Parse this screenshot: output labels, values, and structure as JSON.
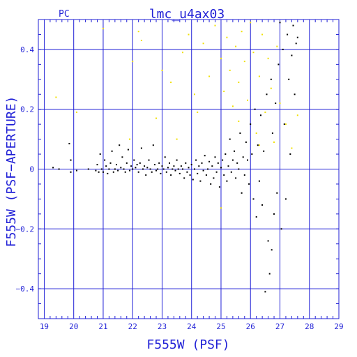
{
  "chart_data": {
    "type": "scatter",
    "title": "lmc_u4ax03",
    "corner_label": "PC",
    "xlabel": "F555W (PSF)",
    "ylabel": "F555W (PSF−APERTURE)",
    "xlim": [
      18.8,
      29.0
    ],
    "ylim": [
      -0.5,
      0.5
    ],
    "x_ticks": [
      "19",
      "20",
      "21",
      "22",
      "23",
      "24",
      "25",
      "26",
      "27",
      "28",
      "29"
    ],
    "y_ticks": [
      "0.4",
      "0.2",
      "0",
      "−0.2",
      "−0.4"
    ],
    "y_tick_values": [
      0.4,
      0.2,
      0,
      -0.2,
      -0.4
    ],
    "x_tick_values": [
      19,
      20,
      21,
      22,
      23,
      24,
      25,
      26,
      27,
      28,
      29
    ],
    "grid": true,
    "colors": {
      "axis": "#1f1fd6",
      "black_points": "#000000",
      "yellow_points": "#f0e000",
      "background": "#ffffff"
    },
    "series": [
      {
        "color": "black",
        "points": [
          [
            19.3,
            0.005
          ],
          [
            19.5,
            0.0
          ],
          [
            19.85,
            0.085
          ],
          [
            19.9,
            0.03
          ],
          [
            19.9,
            -0.01
          ],
          [
            20.1,
            -0.005
          ],
          [
            20.5,
            0.0
          ],
          [
            20.75,
            -0.005
          ],
          [
            20.8,
            0.015
          ],
          [
            20.85,
            -0.01
          ],
          [
            20.9,
            0.05
          ],
          [
            20.95,
            0.0
          ],
          [
            21.0,
            -0.01
          ],
          [
            21.05,
            0.03
          ],
          [
            21.1,
            0.01
          ],
          [
            21.15,
            -0.015
          ],
          [
            21.2,
            0.0
          ],
          [
            21.25,
            0.02
          ],
          [
            21.3,
            0.06
          ],
          [
            21.35,
            -0.01
          ],
          [
            21.4,
            0.0
          ],
          [
            21.45,
            0.015
          ],
          [
            21.5,
            -0.005
          ],
          [
            21.55,
            0.08
          ],
          [
            21.6,
            0.005
          ],
          [
            21.65,
            0.04
          ],
          [
            21.7,
            0.0
          ],
          [
            21.75,
            -0.01
          ],
          [
            21.8,
            0.02
          ],
          [
            21.85,
            0.065
          ],
          [
            21.9,
            -0.005
          ],
          [
            21.95,
            0.01
          ],
          [
            22.0,
            0.0
          ],
          [
            22.05,
            0.03
          ],
          [
            22.1,
            0.005
          ],
          [
            22.15,
            0.015
          ],
          [
            22.2,
            -0.01
          ],
          [
            22.25,
            0.02
          ],
          [
            22.3,
            0.07
          ],
          [
            22.35,
            0.0
          ],
          [
            22.4,
            0.01
          ],
          [
            22.45,
            -0.02
          ],
          [
            22.5,
            0.005
          ],
          [
            22.55,
            0.03
          ],
          [
            22.6,
            0.0
          ],
          [
            22.65,
            -0.01
          ],
          [
            22.7,
            0.08
          ],
          [
            22.75,
            0.015
          ],
          [
            22.8,
            -0.005
          ],
          [
            22.85,
            0.0
          ],
          [
            22.9,
            0.02
          ],
          [
            22.95,
            -0.015
          ],
          [
            23.0,
            0.01
          ],
          [
            23.05,
            0.0
          ],
          [
            23.1,
            0.04
          ],
          [
            23.15,
            -0.01
          ],
          [
            23.2,
            0.005
          ],
          [
            23.25,
            0.02
          ],
          [
            23.3,
            -0.02
          ],
          [
            23.35,
            0.0
          ],
          [
            23.4,
            0.01
          ],
          [
            23.45,
            -0.005
          ],
          [
            23.5,
            0.03
          ],
          [
            23.55,
            0.0
          ],
          [
            23.6,
            -0.015
          ],
          [
            23.65,
            0.01
          ],
          [
            23.7,
            0.0
          ],
          [
            23.75,
            -0.03
          ],
          [
            23.8,
            0.02
          ],
          [
            23.85,
            -0.01
          ],
          [
            23.9,
            0.005
          ],
          [
            23.95,
            -0.02
          ],
          [
            24.0,
            0.015
          ],
          [
            24.05,
            -0.035
          ],
          [
            24.1,
            0.0
          ],
          [
            24.15,
            0.03
          ],
          [
            24.2,
            -0.015
          ],
          [
            24.25,
            0.01
          ],
          [
            24.3,
            -0.04
          ],
          [
            24.35,
            0.02
          ],
          [
            24.4,
            -0.005
          ],
          [
            24.45,
            0.045
          ],
          [
            24.5,
            -0.02
          ],
          [
            24.55,
            0.0
          ],
          [
            24.6,
            0.025
          ],
          [
            24.65,
            -0.05
          ],
          [
            24.7,
            0.01
          ],
          [
            24.75,
            -0.03
          ],
          [
            24.8,
            0.04
          ],
          [
            24.85,
            -0.01
          ],
          [
            24.9,
            0.02
          ],
          [
            24.95,
            -0.06
          ],
          [
            25.0,
            0.005
          ],
          [
            25.05,
            0.03
          ],
          [
            25.1,
            -0.02
          ],
          [
            25.15,
            0.05
          ],
          [
            25.2,
            -0.04
          ],
          [
            25.25,
            0.01
          ],
          [
            25.3,
            0.1
          ],
          [
            25.35,
            -0.01
          ],
          [
            25.4,
            0.03
          ],
          [
            25.45,
            0.06
          ],
          [
            25.5,
            -0.03
          ],
          [
            25.55,
            0.02
          ],
          [
            25.6,
            0.0
          ],
          [
            25.65,
            0.12
          ],
          [
            25.7,
            -0.08
          ],
          [
            25.75,
            0.04
          ],
          [
            25.8,
            -0.02
          ],
          [
            25.85,
            0.09
          ],
          [
            25.9,
            0.03
          ],
          [
            25.95,
            -0.05
          ],
          [
            26.0,
            0.15
          ],
          [
            26.05,
            0.05
          ],
          [
            26.1,
            -0.1
          ],
          [
            26.15,
            0.2
          ],
          [
            26.2,
            -0.16
          ],
          [
            26.25,
            0.08
          ],
          [
            26.3,
            -0.04
          ],
          [
            26.35,
            0.18
          ],
          [
            26.4,
            -0.12
          ],
          [
            26.45,
            0.06
          ],
          [
            26.5,
            -0.41
          ],
          [
            26.55,
            0.25
          ],
          [
            26.6,
            -0.24
          ],
          [
            26.65,
            -0.35
          ],
          [
            26.7,
            0.3
          ],
          [
            26.72,
            -0.27
          ],
          [
            26.75,
            0.12
          ],
          [
            26.8,
            -0.15
          ],
          [
            26.85,
            0.22
          ],
          [
            26.9,
            -0.08
          ],
          [
            26.95,
            0.35
          ],
          [
            27.0,
            0.49
          ],
          [
            27.05,
            -0.2
          ],
          [
            27.1,
            0.4
          ],
          [
            27.15,
            0.15
          ],
          [
            27.2,
            -0.1
          ],
          [
            27.25,
            0.45
          ],
          [
            27.3,
            0.3
          ],
          [
            27.35,
            0.05
          ],
          [
            27.4,
            0.38
          ],
          [
            27.45,
            0.48
          ],
          [
            27.5,
            0.25
          ],
          [
            27.55,
            0.42
          ],
          [
            27.6,
            0.44
          ]
        ]
      },
      {
        "color": "yellow",
        "points": [
          [
            19.4,
            0.24
          ],
          [
            20.1,
            0.19
          ],
          [
            21.0,
            0.47
          ],
          [
            21.9,
            0.1
          ],
          [
            22.0,
            0.36
          ],
          [
            22.2,
            0.46
          ],
          [
            22.3,
            0.43
          ],
          [
            22.8,
            0.17
          ],
          [
            23.0,
            0.33
          ],
          [
            23.3,
            0.29
          ],
          [
            23.5,
            0.1
          ],
          [
            23.7,
            0.39
          ],
          [
            23.9,
            0.45
          ],
          [
            24.1,
            0.25
          ],
          [
            24.2,
            0.19
          ],
          [
            24.4,
            0.42
          ],
          [
            24.6,
            0.31
          ],
          [
            24.8,
            0.48
          ],
          [
            25.0,
            0.37
          ],
          [
            25.1,
            0.26
          ],
          [
            25.2,
            0.44
          ],
          [
            25.3,
            0.33
          ],
          [
            25.4,
            0.21
          ],
          [
            25.5,
            0.41
          ],
          [
            25.6,
            0.29
          ],
          [
            25.7,
            0.46
          ],
          [
            25.8,
            0.36
          ],
          [
            25.9,
            0.23
          ],
          [
            26.0,
            0.49
          ],
          [
            26.1,
            0.39
          ],
          [
            26.2,
            0.12
          ],
          [
            26.3,
            0.31
          ],
          [
            26.4,
            0.45
          ],
          [
            26.5,
            0.19
          ],
          [
            26.6,
            0.37
          ],
          [
            26.7,
            0.27
          ],
          [
            26.8,
            0.09
          ],
          [
            26.9,
            0.41
          ],
          [
            27.0,
            0.22
          ],
          [
            27.2,
            0.15
          ],
          [
            27.4,
            0.07
          ],
          [
            27.6,
            0.18
          ],
          [
            25.0,
            -0.13
          ],
          [
            25.6,
            0.16
          ],
          [
            26.3,
            0.08
          ]
        ]
      }
    ]
  }
}
